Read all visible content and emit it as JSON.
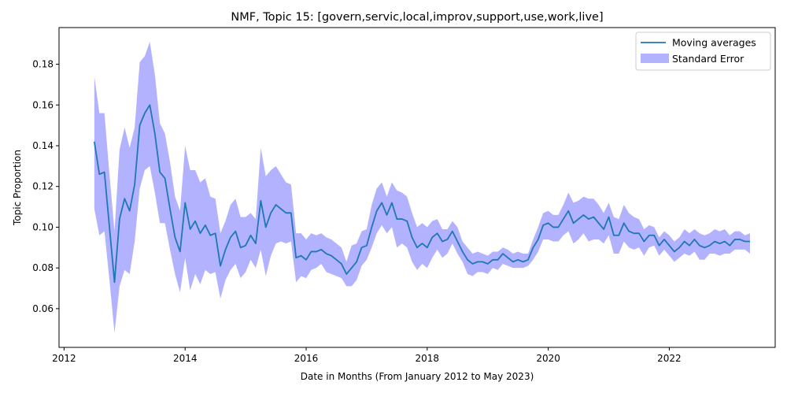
{
  "chart_data": {
    "type": "line",
    "title": "NMF, Topic 15: [govern,servic,local,improv,support,use,work,live]",
    "xlabel": "Date in Months (From January 2012 to May 2023)",
    "ylabel": "Topic Proportion",
    "xlim": [
      "2011-12-01",
      "2023-10-01"
    ],
    "ylim": [
      0.041,
      0.198
    ],
    "x_ticks": [
      "2012",
      "2014",
      "2016",
      "2018",
      "2020",
      "2022"
    ],
    "y_ticks": [
      "0.06",
      "0.08",
      "0.10",
      "0.12",
      "0.14",
      "0.16",
      "0.18"
    ],
    "grid": false,
    "legend": "top-right",
    "colors": {
      "line": "#1f77b4",
      "band": "#0000ff"
    },
    "series": [
      {
        "name": "Moving averages",
        "x": [
          "2012-07",
          "2012-08",
          "2012-09",
          "2012-10",
          "2012-11",
          "2012-12",
          "2013-01",
          "2013-02",
          "2013-03",
          "2013-04",
          "2013-05",
          "2013-06",
          "2013-07",
          "2013-08",
          "2013-09",
          "2013-10",
          "2013-11",
          "2013-12",
          "2014-01",
          "2014-02",
          "2014-03",
          "2014-04",
          "2014-05",
          "2014-06",
          "2014-07",
          "2014-08",
          "2014-09",
          "2014-10",
          "2014-11",
          "2014-12",
          "2015-01",
          "2015-02",
          "2015-03",
          "2015-04",
          "2015-05",
          "2015-06",
          "2015-07",
          "2015-08",
          "2015-09",
          "2015-10",
          "2015-11",
          "2015-12",
          "2016-01",
          "2016-02",
          "2016-03",
          "2016-04",
          "2016-05",
          "2016-06",
          "2016-07",
          "2016-08",
          "2016-09",
          "2016-10",
          "2016-11",
          "2016-12",
          "2017-01",
          "2017-02",
          "2017-03",
          "2017-04",
          "2017-05",
          "2017-06",
          "2017-07",
          "2017-08",
          "2017-09",
          "2017-10",
          "2017-11",
          "2017-12",
          "2018-01",
          "2018-02",
          "2018-03",
          "2018-04",
          "2018-05",
          "2018-06",
          "2018-07",
          "2018-08",
          "2018-09",
          "2018-10",
          "2018-11",
          "2018-12",
          "2019-01",
          "2019-02",
          "2019-03",
          "2019-04",
          "2019-05",
          "2019-06",
          "2019-07",
          "2019-08",
          "2019-09",
          "2019-10",
          "2019-11",
          "2019-12",
          "2020-01",
          "2020-02",
          "2020-03",
          "2020-04",
          "2020-05",
          "2020-06",
          "2020-07",
          "2020-08",
          "2020-09",
          "2020-10",
          "2020-11",
          "2020-12",
          "2021-01",
          "2021-02",
          "2021-03",
          "2021-04",
          "2021-05",
          "2021-06",
          "2021-07",
          "2021-08",
          "2021-09",
          "2021-10",
          "2021-11",
          "2021-12",
          "2022-01",
          "2022-02",
          "2022-03",
          "2022-04",
          "2022-05",
          "2022-06",
          "2022-07",
          "2022-08",
          "2022-09",
          "2022-10",
          "2022-11",
          "2022-12",
          "2023-01",
          "2023-02",
          "2023-03",
          "2023-04",
          "2023-05"
        ],
        "values": [
          0.142,
          0.126,
          0.127,
          0.1,
          0.073,
          0.104,
          0.114,
          0.108,
          0.121,
          0.15,
          0.156,
          0.16,
          0.146,
          0.127,
          0.124,
          0.109,
          0.095,
          0.088,
          0.112,
          0.099,
          0.103,
          0.097,
          0.101,
          0.096,
          0.097,
          0.081,
          0.089,
          0.095,
          0.098,
          0.09,
          0.091,
          0.096,
          0.092,
          0.113,
          0.1,
          0.107,
          0.111,
          0.109,
          0.107,
          0.107,
          0.085,
          0.086,
          0.084,
          0.088,
          0.088,
          0.089,
          0.087,
          0.086,
          0.084,
          0.082,
          0.077,
          0.08,
          0.083,
          0.09,
          0.091,
          0.1,
          0.108,
          0.112,
          0.106,
          0.112,
          0.104,
          0.104,
          0.103,
          0.095,
          0.09,
          0.092,
          0.09,
          0.095,
          0.097,
          0.093,
          0.094,
          0.098,
          0.093,
          0.088,
          0.084,
          0.082,
          0.083,
          0.083,
          0.082,
          0.084,
          0.084,
          0.087,
          0.085,
          0.083,
          0.084,
          0.083,
          0.084,
          0.09,
          0.094,
          0.101,
          0.102,
          0.1,
          0.1,
          0.104,
          0.108,
          0.102,
          0.104,
          0.106,
          0.104,
          0.105,
          0.102,
          0.099,
          0.105,
          0.096,
          0.096,
          0.102,
          0.098,
          0.097,
          0.097,
          0.093,
          0.096,
          0.096,
          0.091,
          0.094,
          0.091,
          0.088,
          0.09,
          0.093,
          0.091,
          0.094,
          0.091,
          0.09,
          0.091,
          0.093,
          0.092,
          0.093,
          0.091,
          0.094,
          0.094,
          0.093,
          0.093
        ]
      },
      {
        "name": "Standard Error",
        "lower": [
          0.109,
          0.096,
          0.098,
          0.074,
          0.048,
          0.071,
          0.079,
          0.077,
          0.093,
          0.119,
          0.128,
          0.13,
          0.117,
          0.102,
          0.102,
          0.089,
          0.077,
          0.068,
          0.085,
          0.069,
          0.077,
          0.072,
          0.079,
          0.077,
          0.078,
          0.065,
          0.074,
          0.079,
          0.082,
          0.075,
          0.078,
          0.084,
          0.08,
          0.089,
          0.076,
          0.086,
          0.092,
          0.093,
          0.092,
          0.093,
          0.073,
          0.076,
          0.075,
          0.079,
          0.08,
          0.082,
          0.078,
          0.077,
          0.076,
          0.075,
          0.071,
          0.071,
          0.074,
          0.081,
          0.084,
          0.09,
          0.097,
          0.101,
          0.097,
          0.1,
          0.09,
          0.092,
          0.09,
          0.083,
          0.079,
          0.082,
          0.08,
          0.085,
          0.089,
          0.085,
          0.087,
          0.092,
          0.087,
          0.083,
          0.077,
          0.076,
          0.078,
          0.078,
          0.077,
          0.08,
          0.079,
          0.082,
          0.081,
          0.08,
          0.08,
          0.08,
          0.081,
          0.084,
          0.088,
          0.094,
          0.094,
          0.093,
          0.093,
          0.096,
          0.098,
          0.092,
          0.094,
          0.097,
          0.093,
          0.094,
          0.094,
          0.092,
          0.096,
          0.087,
          0.087,
          0.093,
          0.09,
          0.089,
          0.09,
          0.086,
          0.09,
          0.091,
          0.086,
          0.089,
          0.086,
          0.083,
          0.085,
          0.087,
          0.086,
          0.088,
          0.084,
          0.084,
          0.087,
          0.087,
          0.086,
          0.087,
          0.087,
          0.089,
          0.089,
          0.089,
          0.087
        ],
        "upper": [
          0.174,
          0.156,
          0.156,
          0.126,
          0.098,
          0.138,
          0.149,
          0.139,
          0.149,
          0.181,
          0.184,
          0.191,
          0.175,
          0.151,
          0.146,
          0.132,
          0.115,
          0.108,
          0.14,
          0.128,
          0.128,
          0.122,
          0.124,
          0.115,
          0.114,
          0.097,
          0.103,
          0.111,
          0.114,
          0.105,
          0.105,
          0.107,
          0.104,
          0.139,
          0.125,
          0.128,
          0.13,
          0.126,
          0.122,
          0.121,
          0.097,
          0.097,
          0.094,
          0.097,
          0.096,
          0.097,
          0.095,
          0.094,
          0.092,
          0.09,
          0.083,
          0.091,
          0.092,
          0.098,
          0.099,
          0.111,
          0.119,
          0.122,
          0.115,
          0.122,
          0.118,
          0.117,
          0.115,
          0.107,
          0.1,
          0.102,
          0.1,
          0.103,
          0.104,
          0.099,
          0.099,
          0.103,
          0.1,
          0.093,
          0.09,
          0.087,
          0.088,
          0.087,
          0.086,
          0.088,
          0.088,
          0.09,
          0.089,
          0.087,
          0.088,
          0.087,
          0.087,
          0.094,
          0.1,
          0.107,
          0.108,
          0.106,
          0.106,
          0.111,
          0.117,
          0.112,
          0.113,
          0.115,
          0.114,
          0.114,
          0.111,
          0.107,
          0.112,
          0.105,
          0.104,
          0.111,
          0.107,
          0.105,
          0.104,
          0.099,
          0.101,
          0.1,
          0.095,
          0.098,
          0.096,
          0.093,
          0.095,
          0.099,
          0.097,
          0.099,
          0.097,
          0.096,
          0.097,
          0.099,
          0.098,
          0.099,
          0.096,
          0.098,
          0.098,
          0.096,
          0.097
        ]
      }
    ]
  }
}
